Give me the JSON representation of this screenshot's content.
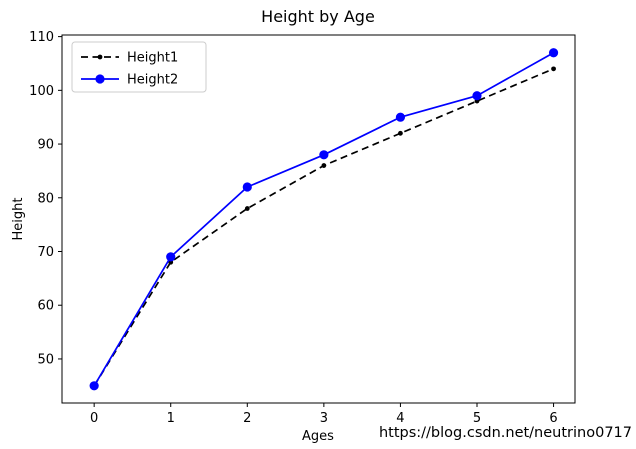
{
  "chart_data": {
    "type": "line",
    "title": "Height by Age",
    "xlabel": "Ages",
    "ylabel": "Height",
    "x": [
      0,
      1,
      2,
      3,
      4,
      5,
      6
    ],
    "series": [
      {
        "name": "Height1",
        "values": [
          45,
          68,
          78,
          86,
          92,
          98,
          104
        ],
        "color": "#000000",
        "style": "dashed",
        "marker": "dot",
        "marker_size": 2.4
      },
      {
        "name": "Height2",
        "values": [
          45,
          69,
          82,
          88,
          95,
          99,
          107
        ],
        "color": "#0000ff",
        "style": "solid",
        "marker": "circle",
        "marker_size": 4.6
      }
    ],
    "xticks": [
      0,
      1,
      2,
      3,
      4,
      5,
      6
    ],
    "yticks": [
      50,
      60,
      70,
      80,
      90,
      100,
      110
    ],
    "xlim": [
      -0.42,
      6.28
    ],
    "ylim": [
      41.8,
      110.3
    ],
    "legend_position": "upper-left",
    "grid": false,
    "axis_color": "#000000",
    "legend_border_color": "#cccccc"
  },
  "watermark": {
    "text": "https://blog.csdn.net/neutrino0717",
    "color": "#dcdcdc"
  }
}
